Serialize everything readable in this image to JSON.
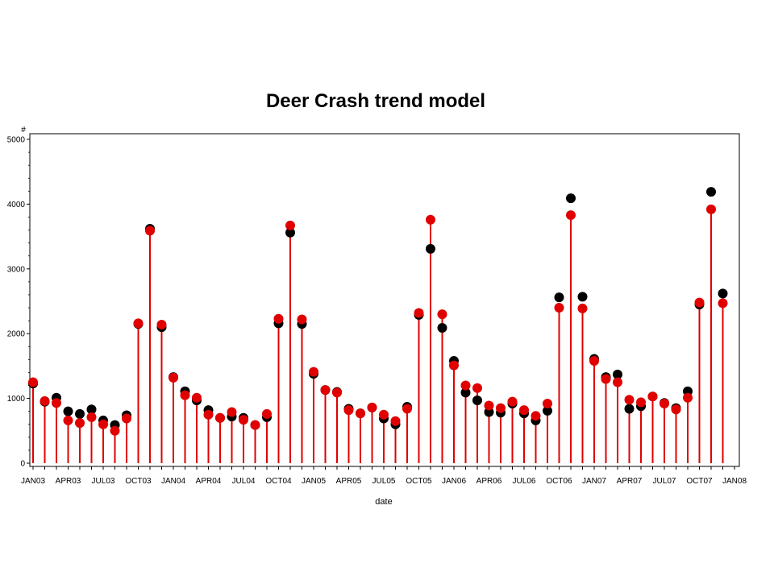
{
  "chart_data": {
    "type": "scatter",
    "title": "Deer Crash trend model",
    "xlabel": "date",
    "ylabel": "#",
    "ylim": [
      0,
      5000
    ],
    "yticks": [
      0,
      1000,
      2000,
      3000,
      4000,
      5000
    ],
    "xtick_labels": [
      "JAN03",
      "APR03",
      "JUL03",
      "OCT03",
      "JAN04",
      "APR04",
      "JUL04",
      "OCT04",
      "JAN05",
      "APR05",
      "JUL05",
      "OCT05",
      "JAN06",
      "APR06",
      "JUL06",
      "OCT06",
      "JAN07",
      "APR07",
      "JUL07",
      "OCT07",
      "JAN08"
    ],
    "x": [
      "JAN03",
      "FEB03",
      "MAR03",
      "APR03",
      "MAY03",
      "JUN03",
      "JUL03",
      "AUG03",
      "SEP03",
      "OCT03",
      "NOV03",
      "DEC03",
      "JAN04",
      "FEB04",
      "MAR04",
      "APR04",
      "MAY04",
      "JUN04",
      "JUL04",
      "AUG04",
      "SEP04",
      "OCT04",
      "NOV04",
      "DEC04",
      "JAN05",
      "FEB05",
      "MAR05",
      "APR05",
      "MAY05",
      "JUN05",
      "JUL05",
      "AUG05",
      "SEP05",
      "OCT05",
      "NOV05",
      "DEC05",
      "JAN06",
      "FEB06",
      "MAR06",
      "APR06",
      "MAY06",
      "JUN06",
      "JUL06",
      "AUG06",
      "SEP06",
      "OCT06",
      "NOV06",
      "DEC06",
      "JAN07",
      "FEB07",
      "MAR07",
      "APR07",
      "MAY07",
      "JUN07",
      "JUL07",
      "AUG07",
      "SEP07",
      "OCT07",
      "NOV07",
      "DEC07"
    ],
    "series": [
      {
        "color": "#000000",
        "marker": "dot",
        "values": [
          1230,
          950,
          1010,
          800,
          760,
          830,
          660,
          590,
          740,
          2150,
          3620,
          2100,
          1330,
          1110,
          970,
          820,
          700,
          720,
          700,
          590,
          710,
          2160,
          3560,
          2150,
          1380,
          1130,
          1100,
          840,
          770,
          860,
          690,
          600,
          870,
          2290,
          3310,
          2090,
          1580,
          1090,
          970,
          790,
          780,
          920,
          770,
          660,
          810,
          2560,
          4090,
          2570,
          1610,
          1330,
          1370,
          840,
          880,
          1030,
          930,
          850,
          1110,
          2450,
          4190,
          2620
        ]
      },
      {
        "color": "#e00000",
        "marker": "needle",
        "values": [
          1250,
          960,
          930,
          660,
          620,
          710,
          600,
          500,
          690,
          2160,
          3590,
          2140,
          1320,
          1050,
          1010,
          750,
          700,
          790,
          670,
          590,
          760,
          2230,
          3670,
          2220,
          1410,
          1130,
          1090,
          820,
          770,
          860,
          750,
          650,
          840,
          2320,
          3760,
          2300,
          1510,
          1200,
          1160,
          890,
          850,
          950,
          820,
          730,
          920,
          2400,
          3830,
          2390,
          1580,
          1300,
          1250,
          980,
          940,
          1030,
          920,
          830,
          1010,
          2480,
          3920,
          2470
        ]
      }
    ]
  }
}
